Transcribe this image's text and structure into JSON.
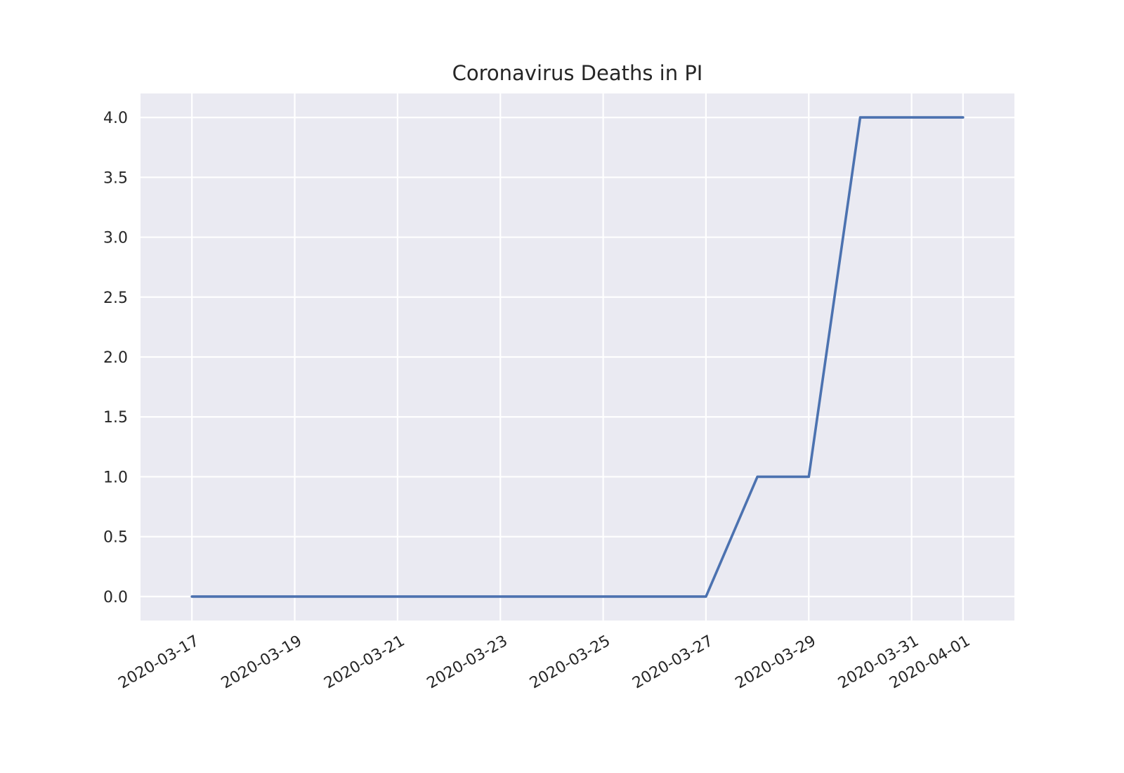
{
  "chart_data": {
    "type": "line",
    "title": "Coronavirus Deaths in PI",
    "xlabel": "",
    "ylabel": "",
    "x": [
      "2020-03-17",
      "2020-03-18",
      "2020-03-19",
      "2020-03-20",
      "2020-03-21",
      "2020-03-22",
      "2020-03-23",
      "2020-03-24",
      "2020-03-25",
      "2020-03-26",
      "2020-03-27",
      "2020-03-28",
      "2020-03-29",
      "2020-03-30",
      "2020-03-31",
      "2020-04-01"
    ],
    "series": [
      {
        "values": [
          0,
          0,
          0,
          0,
          0,
          0,
          0,
          0,
          0,
          0,
          0,
          1,
          1,
          4,
          4,
          4
        ]
      }
    ],
    "x_ticks": [
      "2020-03-17",
      "2020-03-19",
      "2020-03-21",
      "2020-03-23",
      "2020-03-25",
      "2020-03-27",
      "2020-03-29",
      "2020-03-31",
      "2020-04-01"
    ],
    "y_ticks": [
      "0.0",
      "0.5",
      "1.0",
      "1.5",
      "2.0",
      "2.5",
      "3.0",
      "3.5",
      "4.0"
    ],
    "xlim": [
      "2020-03-16",
      "2020-04-02"
    ],
    "ylim": [
      -0.2,
      4.2
    ],
    "grid": true,
    "colors": {
      "plot_background": "#eaeaf2",
      "grid": "#ffffff",
      "series": "#4c72b0",
      "text": "#262626"
    }
  }
}
